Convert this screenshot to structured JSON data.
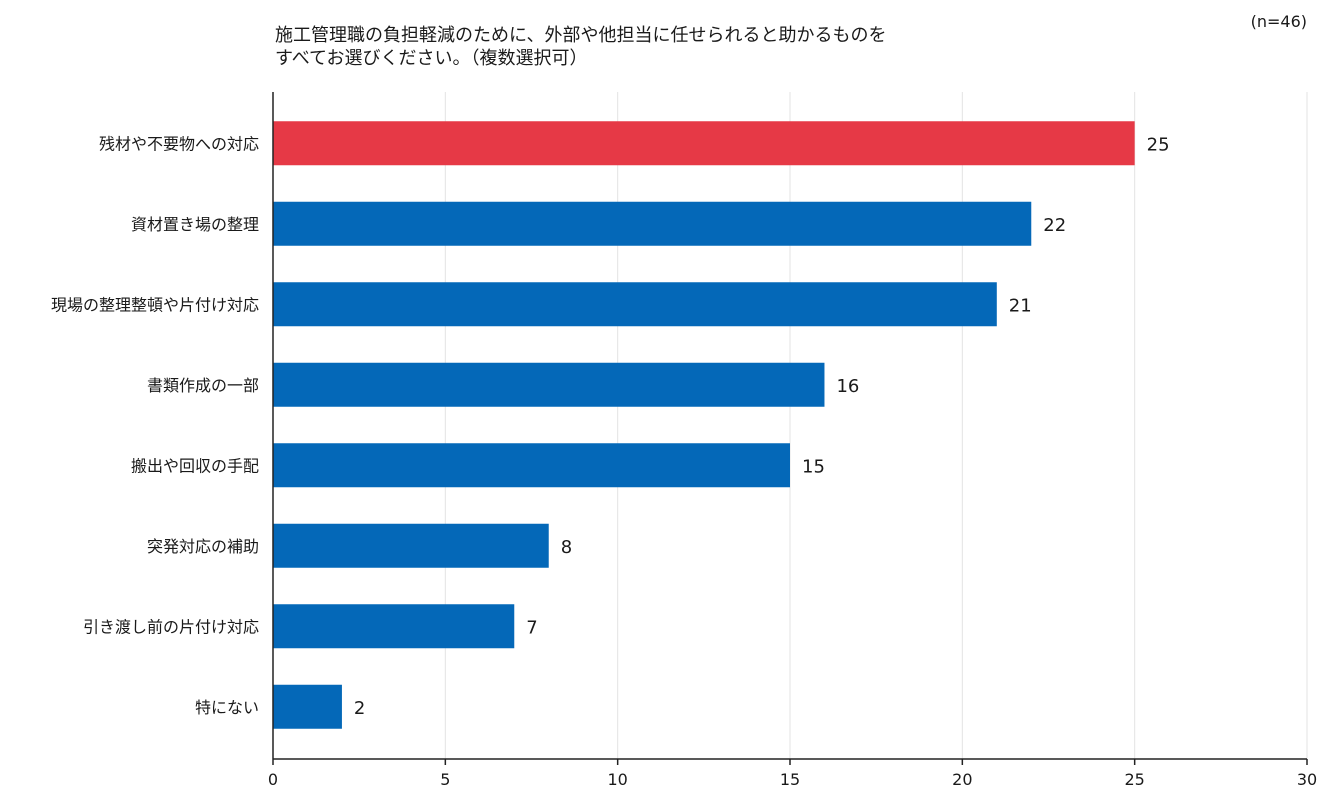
{
  "chart_data": {
    "type": "bar",
    "orientation": "horizontal",
    "title_lines": [
      "施工管理職の負担軽減のために、外部や他担当に任せられると助かるものを",
      "すべてお選びください。（複数選択可）"
    ],
    "sample_size": "(n=46)",
    "categories": [
      "残材や不要物への対応",
      "資材置き場の整理",
      "現場の整理整頓や片付け対応",
      "書類作成の一部",
      "搬出や回収の手配",
      "突発対応の補助",
      "引き渡し前の片付け対応",
      "特にない"
    ],
    "values": [
      25,
      22,
      21,
      16,
      15,
      8,
      7,
      2
    ],
    "highlight_index": 0,
    "colors": {
      "highlight": "#e63946",
      "default": "#0468b8",
      "grid": "#e3e3e3",
      "axis": "#222222"
    },
    "xlim": [
      0,
      30
    ],
    "xticks": [
      0,
      5,
      10,
      15,
      20,
      25,
      30
    ],
    "xlabel": "",
    "ylabel": "",
    "grid": true
  }
}
